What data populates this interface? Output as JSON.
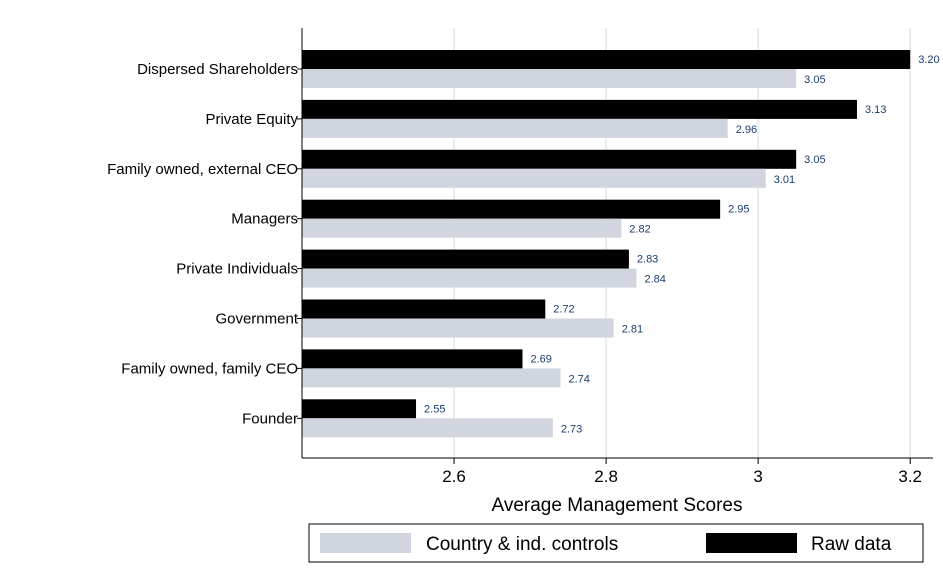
{
  "chart_data": {
    "type": "bar",
    "orientation": "horizontal",
    "categories": [
      "Dispersed Shareholders",
      "Private Equity",
      "Family owned, external CEO",
      "Managers",
      "Private Individuals",
      "Government",
      "Family owned, family CEO",
      "Founder"
    ],
    "series": [
      {
        "name": "Raw data",
        "values": [
          3.2,
          3.13,
          3.05,
          2.95,
          2.83,
          2.72,
          2.69,
          2.55
        ],
        "labels": [
          "3.20",
          "3.13",
          "3.05",
          "2.95",
          "2.83",
          "2.72",
          "2.69",
          "2.55"
        ],
        "color": "#000000"
      },
      {
        "name": "Country & ind. controls",
        "values": [
          3.05,
          2.96,
          3.01,
          2.82,
          2.84,
          2.81,
          2.74,
          2.73
        ],
        "labels": [
          "3.05",
          "2.96",
          "3.01",
          "2.82",
          "2.84",
          "2.81",
          "2.74",
          "2.73"
        ],
        "color": "#d0d5e0"
      }
    ],
    "xlabel": "Average Management Scores",
    "ylabel": "",
    "xlim": [
      2.4,
      3.23
    ],
    "xticks": [
      2.6,
      2.8,
      3.0,
      3.2
    ],
    "xtick_labels": [
      "2.6",
      "2.8",
      "3",
      "3.2"
    ],
    "grid": true,
    "legend": {
      "position": "bottom",
      "entries": [
        "Country & ind. controls",
        "Raw data"
      ]
    }
  },
  "colors": {
    "raw": "#000000",
    "controls": "#d0d5e0",
    "grid": "#e4eef0",
    "value_label": "#1a3e6e"
  }
}
